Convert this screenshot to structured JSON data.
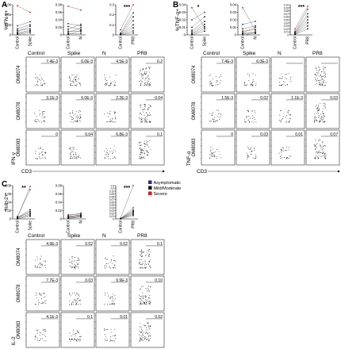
{
  "panels": [
    {
      "letter": "A",
      "ylabel": "%IFN-γ+",
      "stat": "***",
      "cytokine_axis": "IFN-γ",
      "cd3_axis": "CD3",
      "charts": [
        {
          "x": [
            "Control",
            "Spike"
          ],
          "yticks": [
            "0.06",
            "0.04",
            "0.02",
            "0"
          ],
          "stat": ""
        },
        {
          "x": [
            "Control",
            "N"
          ],
          "yticks": [
            "0.08",
            "0.06",
            "0.04",
            "0.02",
            "0"
          ],
          "stat": ""
        },
        {
          "x": [
            "Control",
            "PR8"
          ],
          "yticks": [
            "0.3",
            "0.2",
            "0.1",
            "0"
          ],
          "stat": "***"
        }
      ],
      "columns": [
        "Control",
        "Spike",
        "N",
        "PR8"
      ],
      "rows": [
        {
          "donor": "OM8074",
          "values": [
            "7.4E-3",
            "6.0E-3",
            "4.5E-3",
            "0.2"
          ]
        },
        {
          "donor": "OM8078",
          "values": [
            "3.1E-3",
            "6.0E-3",
            "2.2E-3",
            "0.04"
          ]
        },
        {
          "donor": "OM8083",
          "values": [
            "0",
            "0.04",
            "6.8E-3",
            "0.1"
          ]
        }
      ]
    },
    {
      "letter": "B",
      "ylabel": "%TNF-α+",
      "cytokine_axis": "TNF-α",
      "cd3_axis": "CD3",
      "charts": [
        {
          "x": [
            "Control",
            "Spike"
          ],
          "yticks": [
            "0.04",
            "0.03",
            "0.02",
            "0.01",
            "0"
          ],
          "stat": "*"
        },
        {
          "x": [
            "Control",
            "N"
          ],
          "yticks": [
            "0.04",
            "0.03",
            "0.02",
            "0.01",
            "0"
          ],
          "stat": ""
        },
        {
          "x": [
            "Control",
            "PR8"
          ],
          "yticks": [
            "0.10",
            "0.09",
            "0.08",
            "0.07",
            "0.06",
            "0.05",
            "0.04",
            "0.03",
            "0.02",
            "0.01",
            "0"
          ],
          "stat": "***"
        }
      ],
      "columns": [
        "Control",
        "Spike",
        "N",
        "PR8"
      ],
      "rows": [
        {
          "donor": "OM8074",
          "values": [
            "7.4E-3",
            "6.0E-3",
            "",
            ""
          ]
        },
        {
          "donor": "OM8078",
          "values": [
            "1.5E-3",
            "0.02",
            "1.1E-3",
            "0.03"
          ]
        },
        {
          "donor": "OM8083",
          "values": [
            "0",
            "0.03",
            "0.01",
            "0.07"
          ]
        }
      ]
    },
    {
      "letter": "C",
      "ylabel": "%IL-2+",
      "cytokine_axis": "IL-2",
      "cd3_axis": "CD3",
      "charts": [
        {
          "x": [
            "Control",
            "Spike"
          ],
          "yticks": [
            "0.08",
            "0.06",
            "0.04",
            "0.02",
            "0"
          ],
          "stat": "**"
        },
        {
          "x": [
            "Control",
            "N"
          ],
          "yticks": [
            "0.08",
            "0.06",
            "0.04",
            "0.02",
            "0"
          ],
          "stat": ""
        },
        {
          "x": [
            "Control",
            "PR8"
          ],
          "yticks": [
            "0.3",
            "0.2",
            "0.10",
            "0.09",
            "0.08",
            "0.07",
            "0.06",
            "0.05",
            "0.04",
            "0.03",
            "0.02",
            "0.01",
            "0"
          ],
          "stat": "***"
        }
      ],
      "columns": [
        "Control",
        "Spike",
        "N",
        "PR8"
      ],
      "rows": [
        {
          "donor": "OM8074",
          "values": [
            "4.9E-3",
            "0.02",
            "0.02",
            "0.1"
          ]
        },
        {
          "donor": "OM8078",
          "values": [
            "7.7E-3",
            "0.03",
            "9.9E-3",
            "0.10"
          ]
        },
        {
          "donor": "OM8083",
          "values": [
            "4.1E-3",
            "0.1",
            "0.01",
            "0.02"
          ]
        }
      ]
    }
  ],
  "legend": [
    {
      "label": "Asymptomatic",
      "color": "#1f2f8f"
    },
    {
      "label": "Mild/Moderate",
      "color": "#111111"
    },
    {
      "label": "Severe",
      "color": "#d7191c"
    }
  ],
  "chart_data": [
    {
      "type": "line",
      "panel": "A",
      "ylabel": "%IFN-γ+",
      "x": [
        "Control",
        "Spike"
      ],
      "ylim": [
        0,
        0.06
      ],
      "series": [
        {
          "values": [
            0.058,
            0.045
          ]
        },
        {
          "values": [
            0.018,
            0.026
          ]
        },
        {
          "values": [
            0.012,
            0.02
          ]
        },
        {
          "values": [
            0.009,
            0.012
          ]
        },
        {
          "values": [
            0.006,
            0.017
          ]
        },
        {
          "values": [
            0.004,
            0.009
          ]
        },
        {
          "values": [
            0.002,
            0.007
          ]
        },
        {
          "values": [
            0.001,
            0.004
          ]
        }
      ]
    },
    {
      "type": "line",
      "panel": "A",
      "ylabel": "%IFN-γ+",
      "x": [
        "Control",
        "N"
      ],
      "ylim": [
        0,
        0.08
      ],
      "series": [
        {
          "values": [
            0.076,
            0.066
          ]
        },
        {
          "values": [
            0.03,
            0.024
          ]
        },
        {
          "values": [
            0.022,
            0.014
          ]
        },
        {
          "values": [
            0.015,
            0.028
          ]
        },
        {
          "values": [
            0.01,
            0.009
          ]
        },
        {
          "values": [
            0.006,
            0.019
          ]
        },
        {
          "values": [
            0.003,
            0.004
          ]
        },
        {
          "values": [
            0.001,
            0.012
          ]
        }
      ]
    },
    {
      "type": "line",
      "panel": "A",
      "ylabel": "%IFN-γ+",
      "x": [
        "Control",
        "PR8"
      ],
      "ylim": [
        0,
        0.3
      ],
      "stat": "***",
      "series": [
        {
          "values": [
            0.05,
            0.3
          ]
        },
        {
          "values": [
            0.02,
            0.22
          ]
        },
        {
          "values": [
            0.01,
            0.18
          ]
        },
        {
          "values": [
            0.01,
            0.14
          ]
        },
        {
          "values": [
            0.005,
            0.1
          ]
        },
        {
          "values": [
            0.003,
            0.07
          ]
        },
        {
          "values": [
            0.002,
            0.04
          ]
        },
        {
          "values": [
            0.001,
            0.02
          ]
        }
      ]
    },
    {
      "type": "line",
      "panel": "B",
      "ylabel": "%TNF-α+",
      "x": [
        "Control",
        "Spike"
      ],
      "ylim": [
        0,
        0.04
      ],
      "stat": "*",
      "series": [
        {
          "values": [
            0.036,
            0.01
          ]
        },
        {
          "values": [
            0.02,
            0.03
          ]
        },
        {
          "values": [
            0.01,
            0.024
          ]
        },
        {
          "values": [
            0.006,
            0.018
          ]
        },
        {
          "values": [
            0.004,
            0.014
          ]
        },
        {
          "values": [
            0.002,
            0.011
          ]
        },
        {
          "values": [
            0.001,
            0.008
          ]
        },
        {
          "values": [
            0.0,
            0.005
          ]
        }
      ]
    },
    {
      "type": "line",
      "panel": "B",
      "ylabel": "%TNF-α+",
      "x": [
        "Control",
        "N"
      ],
      "ylim": [
        0,
        0.04
      ],
      "series": [
        {
          "values": [
            0.036,
            0.006
          ]
        },
        {
          "values": [
            0.014,
            0.018
          ]
        },
        {
          "values": [
            0.008,
            0.012
          ]
        },
        {
          "values": [
            0.005,
            0.007
          ]
        },
        {
          "values": [
            0.003,
            0.01
          ]
        },
        {
          "values": [
            0.002,
            0.004
          ]
        },
        {
          "values": [
            0.001,
            0.003
          ]
        },
        {
          "values": [
            0.0,
            0.002
          ]
        }
      ]
    },
    {
      "type": "line",
      "panel": "B",
      "ylabel": "%TNF-α+",
      "x": [
        "Control",
        "PR8"
      ],
      "ylim": [
        0,
        0.1
      ],
      "stat": "***",
      "series": [
        {
          "values": [
            0.02,
            0.095
          ]
        },
        {
          "values": [
            0.012,
            0.085
          ]
        },
        {
          "values": [
            0.008,
            0.07
          ]
        },
        {
          "values": [
            0.006,
            0.06
          ]
        },
        {
          "values": [
            0.004,
            0.05
          ]
        },
        {
          "values": [
            0.003,
            0.04
          ]
        },
        {
          "values": [
            0.002,
            0.03
          ]
        },
        {
          "values": [
            0.001,
            0.02
          ]
        }
      ]
    },
    {
      "type": "line",
      "panel": "C",
      "ylabel": "%IL-2+",
      "x": [
        "Control",
        "Spike"
      ],
      "ylim": [
        0,
        0.08
      ],
      "stat": "**",
      "series": [
        {
          "values": [
            0.004,
            0.078
          ]
        },
        {
          "values": [
            0.006,
            0.07
          ]
        },
        {
          "values": [
            0.003,
            0.022
          ]
        },
        {
          "values": [
            0.002,
            0.018
          ]
        },
        {
          "values": [
            0.005,
            0.015
          ]
        },
        {
          "values": [
            0.001,
            0.012
          ]
        },
        {
          "values": [
            0.002,
            0.009
          ]
        },
        {
          "values": [
            0.0,
            0.006
          ]
        }
      ]
    },
    {
      "type": "line",
      "panel": "C",
      "ylabel": "%IL-2+",
      "x": [
        "Control",
        "N"
      ],
      "ylim": [
        0,
        0.08
      ],
      "series": [
        {
          "values": [
            0.01,
            0.012
          ]
        },
        {
          "values": [
            0.008,
            0.014
          ]
        },
        {
          "values": [
            0.006,
            0.009
          ]
        },
        {
          "values": [
            0.005,
            0.01
          ]
        },
        {
          "values": [
            0.004,
            0.007
          ]
        },
        {
          "values": [
            0.003,
            0.008
          ]
        },
        {
          "values": [
            0.002,
            0.005
          ]
        },
        {
          "values": [
            0.001,
            0.004
          ]
        }
      ]
    },
    {
      "type": "line",
      "panel": "C",
      "ylabel": "%IL-2+",
      "x": [
        "Control",
        "PR8"
      ],
      "ylim": [
        0,
        0.3
      ],
      "stat": "***",
      "series": [
        {
          "values": [
            0.005,
            0.3
          ]
        },
        {
          "values": [
            0.004,
            0.1
          ]
        },
        {
          "values": [
            0.003,
            0.08
          ]
        },
        {
          "values": [
            0.003,
            0.07
          ]
        },
        {
          "values": [
            0.002,
            0.06
          ]
        },
        {
          "values": [
            0.002,
            0.05
          ]
        },
        {
          "values": [
            0.001,
            0.04
          ]
        },
        {
          "values": [
            0.001,
            0.03
          ]
        }
      ]
    }
  ]
}
